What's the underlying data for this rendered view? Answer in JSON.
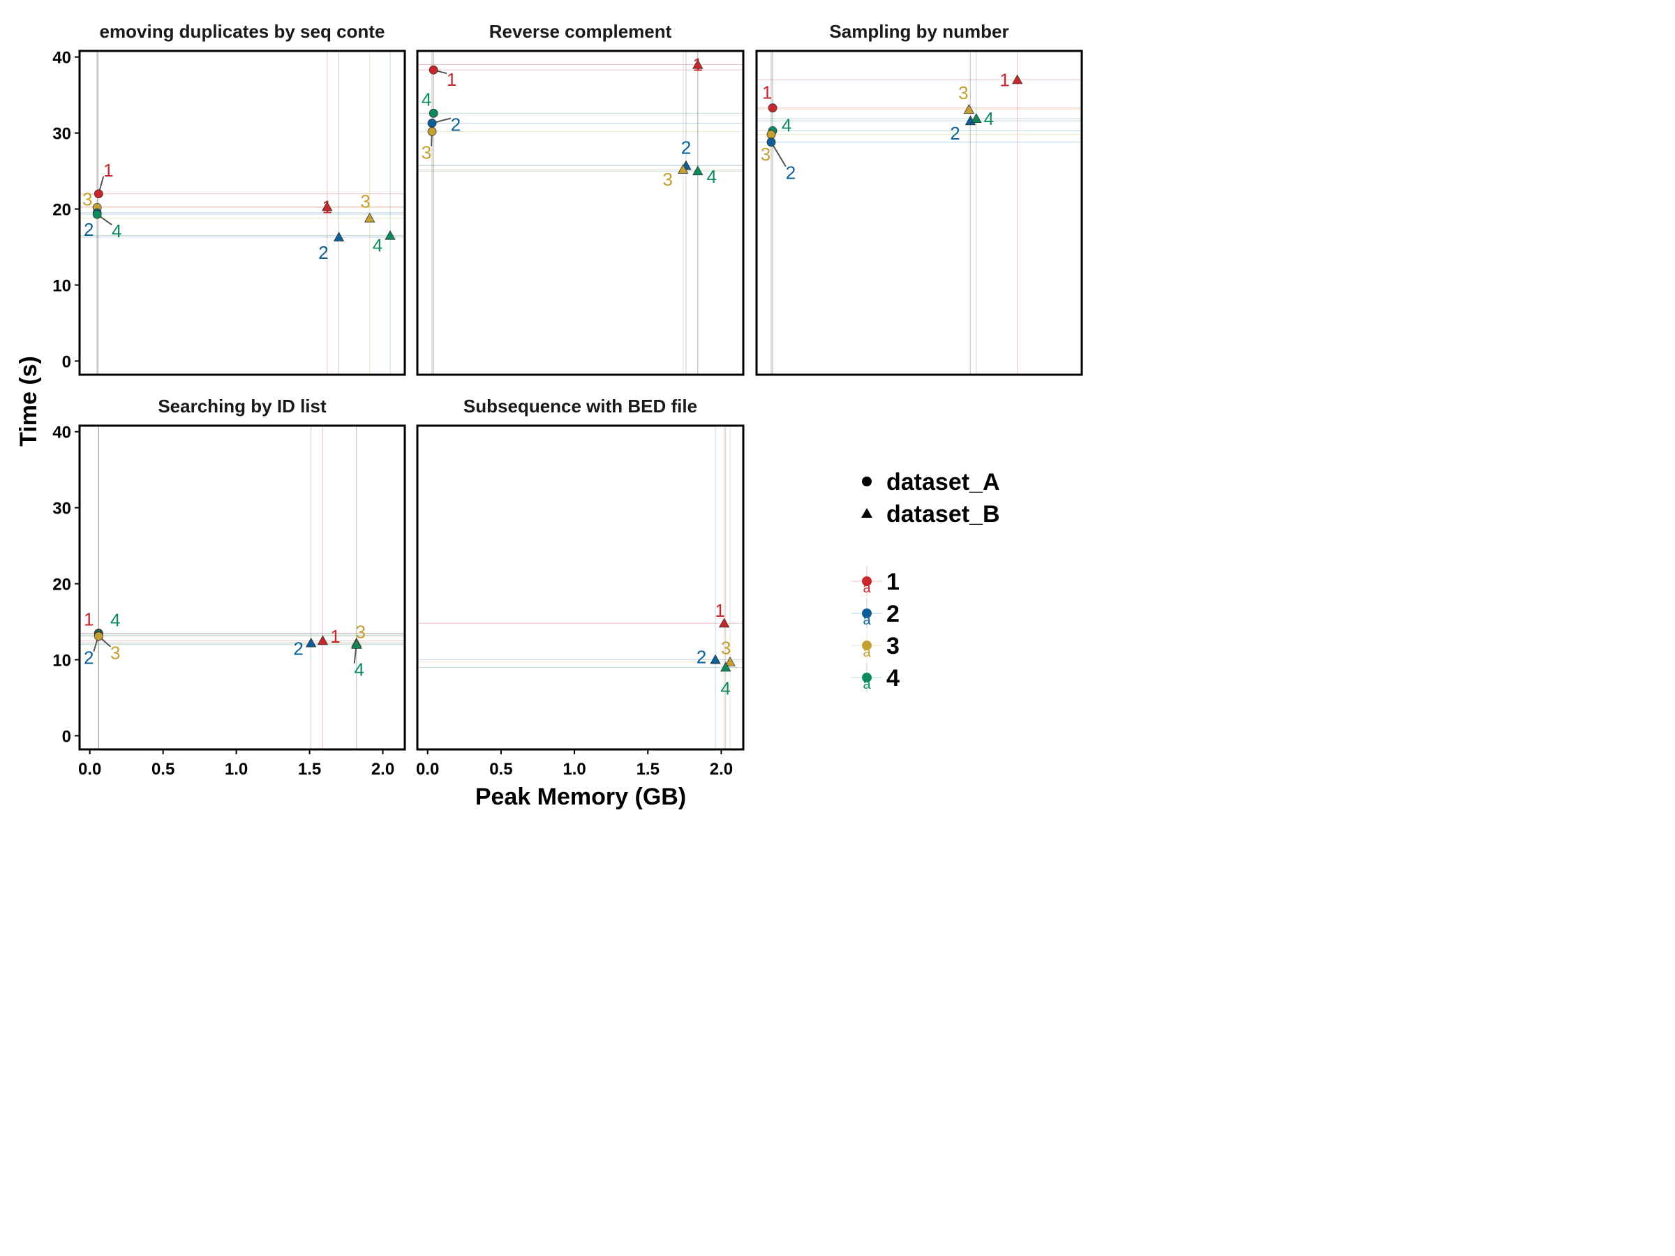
{
  "colors": {
    "1": "#c8262b",
    "2": "#0a5f96",
    "3": "#c3a031",
    "4": "#0c8a5c"
  },
  "chart_data": {
    "type": "scatter",
    "xlabel": "Peak Memory (GB)",
    "ylabel": "Time (s)",
    "xlim": [
      -0.07,
      2.15
    ],
    "ylim": [
      -1.8,
      40.8
    ],
    "x_ticks": [
      "0.0",
      "0.5",
      "1.0",
      "1.5",
      "2.0"
    ],
    "y_ticks": [
      "0",
      "10",
      "20",
      "30",
      "40"
    ],
    "grid": false,
    "legend_position": "right",
    "legend": {
      "shapes": [
        {
          "name": "dataset_A",
          "shape": "circle"
        },
        {
          "name": "dataset_B",
          "shape": "triangle"
        }
      ],
      "groups": [
        "1",
        "2",
        "3",
        "4"
      ],
      "key_glyph": "a"
    },
    "panels": [
      {
        "title": "emoving duplicates by seq conte",
        "points": [
          {
            "g": "1",
            "shape": "circle",
            "x": 0.06,
            "y": 22.0,
            "label": "1"
          },
          {
            "g": "3",
            "shape": "circle",
            "x": 0.05,
            "y": 20.2,
            "label": "3"
          },
          {
            "g": "2",
            "shape": "circle",
            "x": 0.05,
            "y": 19.5,
            "label": "2"
          },
          {
            "g": "4",
            "shape": "circle",
            "x": 0.05,
            "y": 19.3,
            "label": "4"
          },
          {
            "g": "1",
            "shape": "triangle",
            "x": 1.62,
            "y": 20.3,
            "label": "1"
          },
          {
            "g": "2",
            "shape": "triangle",
            "x": 1.7,
            "y": 16.3,
            "label": "2"
          },
          {
            "g": "3",
            "shape": "triangle",
            "x": 1.91,
            "y": 18.8,
            "label": "3"
          },
          {
            "g": "4",
            "shape": "triangle",
            "x": 2.05,
            "y": 16.5,
            "label": "4"
          }
        ]
      },
      {
        "title": "Reverse complement",
        "points": [
          {
            "g": "1",
            "shape": "circle",
            "x": 0.04,
            "y": 38.3,
            "label": "1"
          },
          {
            "g": "4",
            "shape": "circle",
            "x": 0.04,
            "y": 32.6,
            "label": "4"
          },
          {
            "g": "2",
            "shape": "circle",
            "x": 0.03,
            "y": 31.3,
            "label": "2"
          },
          {
            "g": "3",
            "shape": "circle",
            "x": 0.03,
            "y": 30.2,
            "label": "3"
          },
          {
            "g": "1",
            "shape": "triangle",
            "x": 1.84,
            "y": 39.0,
            "label": "1"
          },
          {
            "g": "2",
            "shape": "triangle",
            "x": 1.76,
            "y": 25.7,
            "label": "2"
          },
          {
            "g": "3",
            "shape": "triangle",
            "x": 1.74,
            "y": 25.2,
            "label": "3"
          },
          {
            "g": "4",
            "shape": "triangle",
            "x": 1.84,
            "y": 25.0,
            "label": "4"
          }
        ]
      },
      {
        "title": "Sampling by number",
        "points": [
          {
            "g": "1",
            "shape": "circle",
            "x": 0.04,
            "y": 33.3,
            "label": "1"
          },
          {
            "g": "4",
            "shape": "circle",
            "x": 0.04,
            "y": 30.3,
            "label": "4"
          },
          {
            "g": "3",
            "shape": "circle",
            "x": 0.03,
            "y": 29.8,
            "label": "3"
          },
          {
            "g": "2",
            "shape": "circle",
            "x": 0.03,
            "y": 28.8,
            "label": "2"
          },
          {
            "g": "1",
            "shape": "triangle",
            "x": 1.71,
            "y": 37.0,
            "label": "1"
          },
          {
            "g": "3",
            "shape": "triangle",
            "x": 1.38,
            "y": 33.1,
            "label": "3"
          },
          {
            "g": "2",
            "shape": "triangle",
            "x": 1.39,
            "y": 31.6,
            "label": "2"
          },
          {
            "g": "4",
            "shape": "triangle",
            "x": 1.43,
            "y": 31.9,
            "label": "4"
          }
        ]
      },
      {
        "title": "Searching by ID list",
        "points": [
          {
            "g": "1",
            "shape": "circle",
            "x": 0.06,
            "y": 13.5,
            "label": "1"
          },
          {
            "g": "4",
            "shape": "circle",
            "x": 0.06,
            "y": 13.4,
            "label": "4"
          },
          {
            "g": "2",
            "shape": "circle",
            "x": 0.06,
            "y": 13.2,
            "label": "2"
          },
          {
            "g": "3",
            "shape": "circle",
            "x": 0.06,
            "y": 13.1,
            "label": "3"
          },
          {
            "g": "2",
            "shape": "triangle",
            "x": 1.51,
            "y": 12.2,
            "label": "2"
          },
          {
            "g": "1",
            "shape": "triangle",
            "x": 1.59,
            "y": 12.5,
            "label": "1"
          },
          {
            "g": "3",
            "shape": "triangle",
            "x": 1.82,
            "y": 12.2,
            "label": "3"
          },
          {
            "g": "4",
            "shape": "triangle",
            "x": 1.82,
            "y": 12.0,
            "label": "4"
          }
        ]
      },
      {
        "title": "Subsequence with BED file",
        "points": [
          {
            "g": "1",
            "shape": "triangle",
            "x": 2.02,
            "y": 14.8,
            "label": "1"
          },
          {
            "g": "2",
            "shape": "triangle",
            "x": 1.96,
            "y": 10.0,
            "label": "2"
          },
          {
            "g": "3",
            "shape": "triangle",
            "x": 2.06,
            "y": 9.7,
            "label": "3"
          },
          {
            "g": "4",
            "shape": "triangle",
            "x": 2.03,
            "y": 9.0,
            "label": "4"
          }
        ]
      }
    ]
  }
}
